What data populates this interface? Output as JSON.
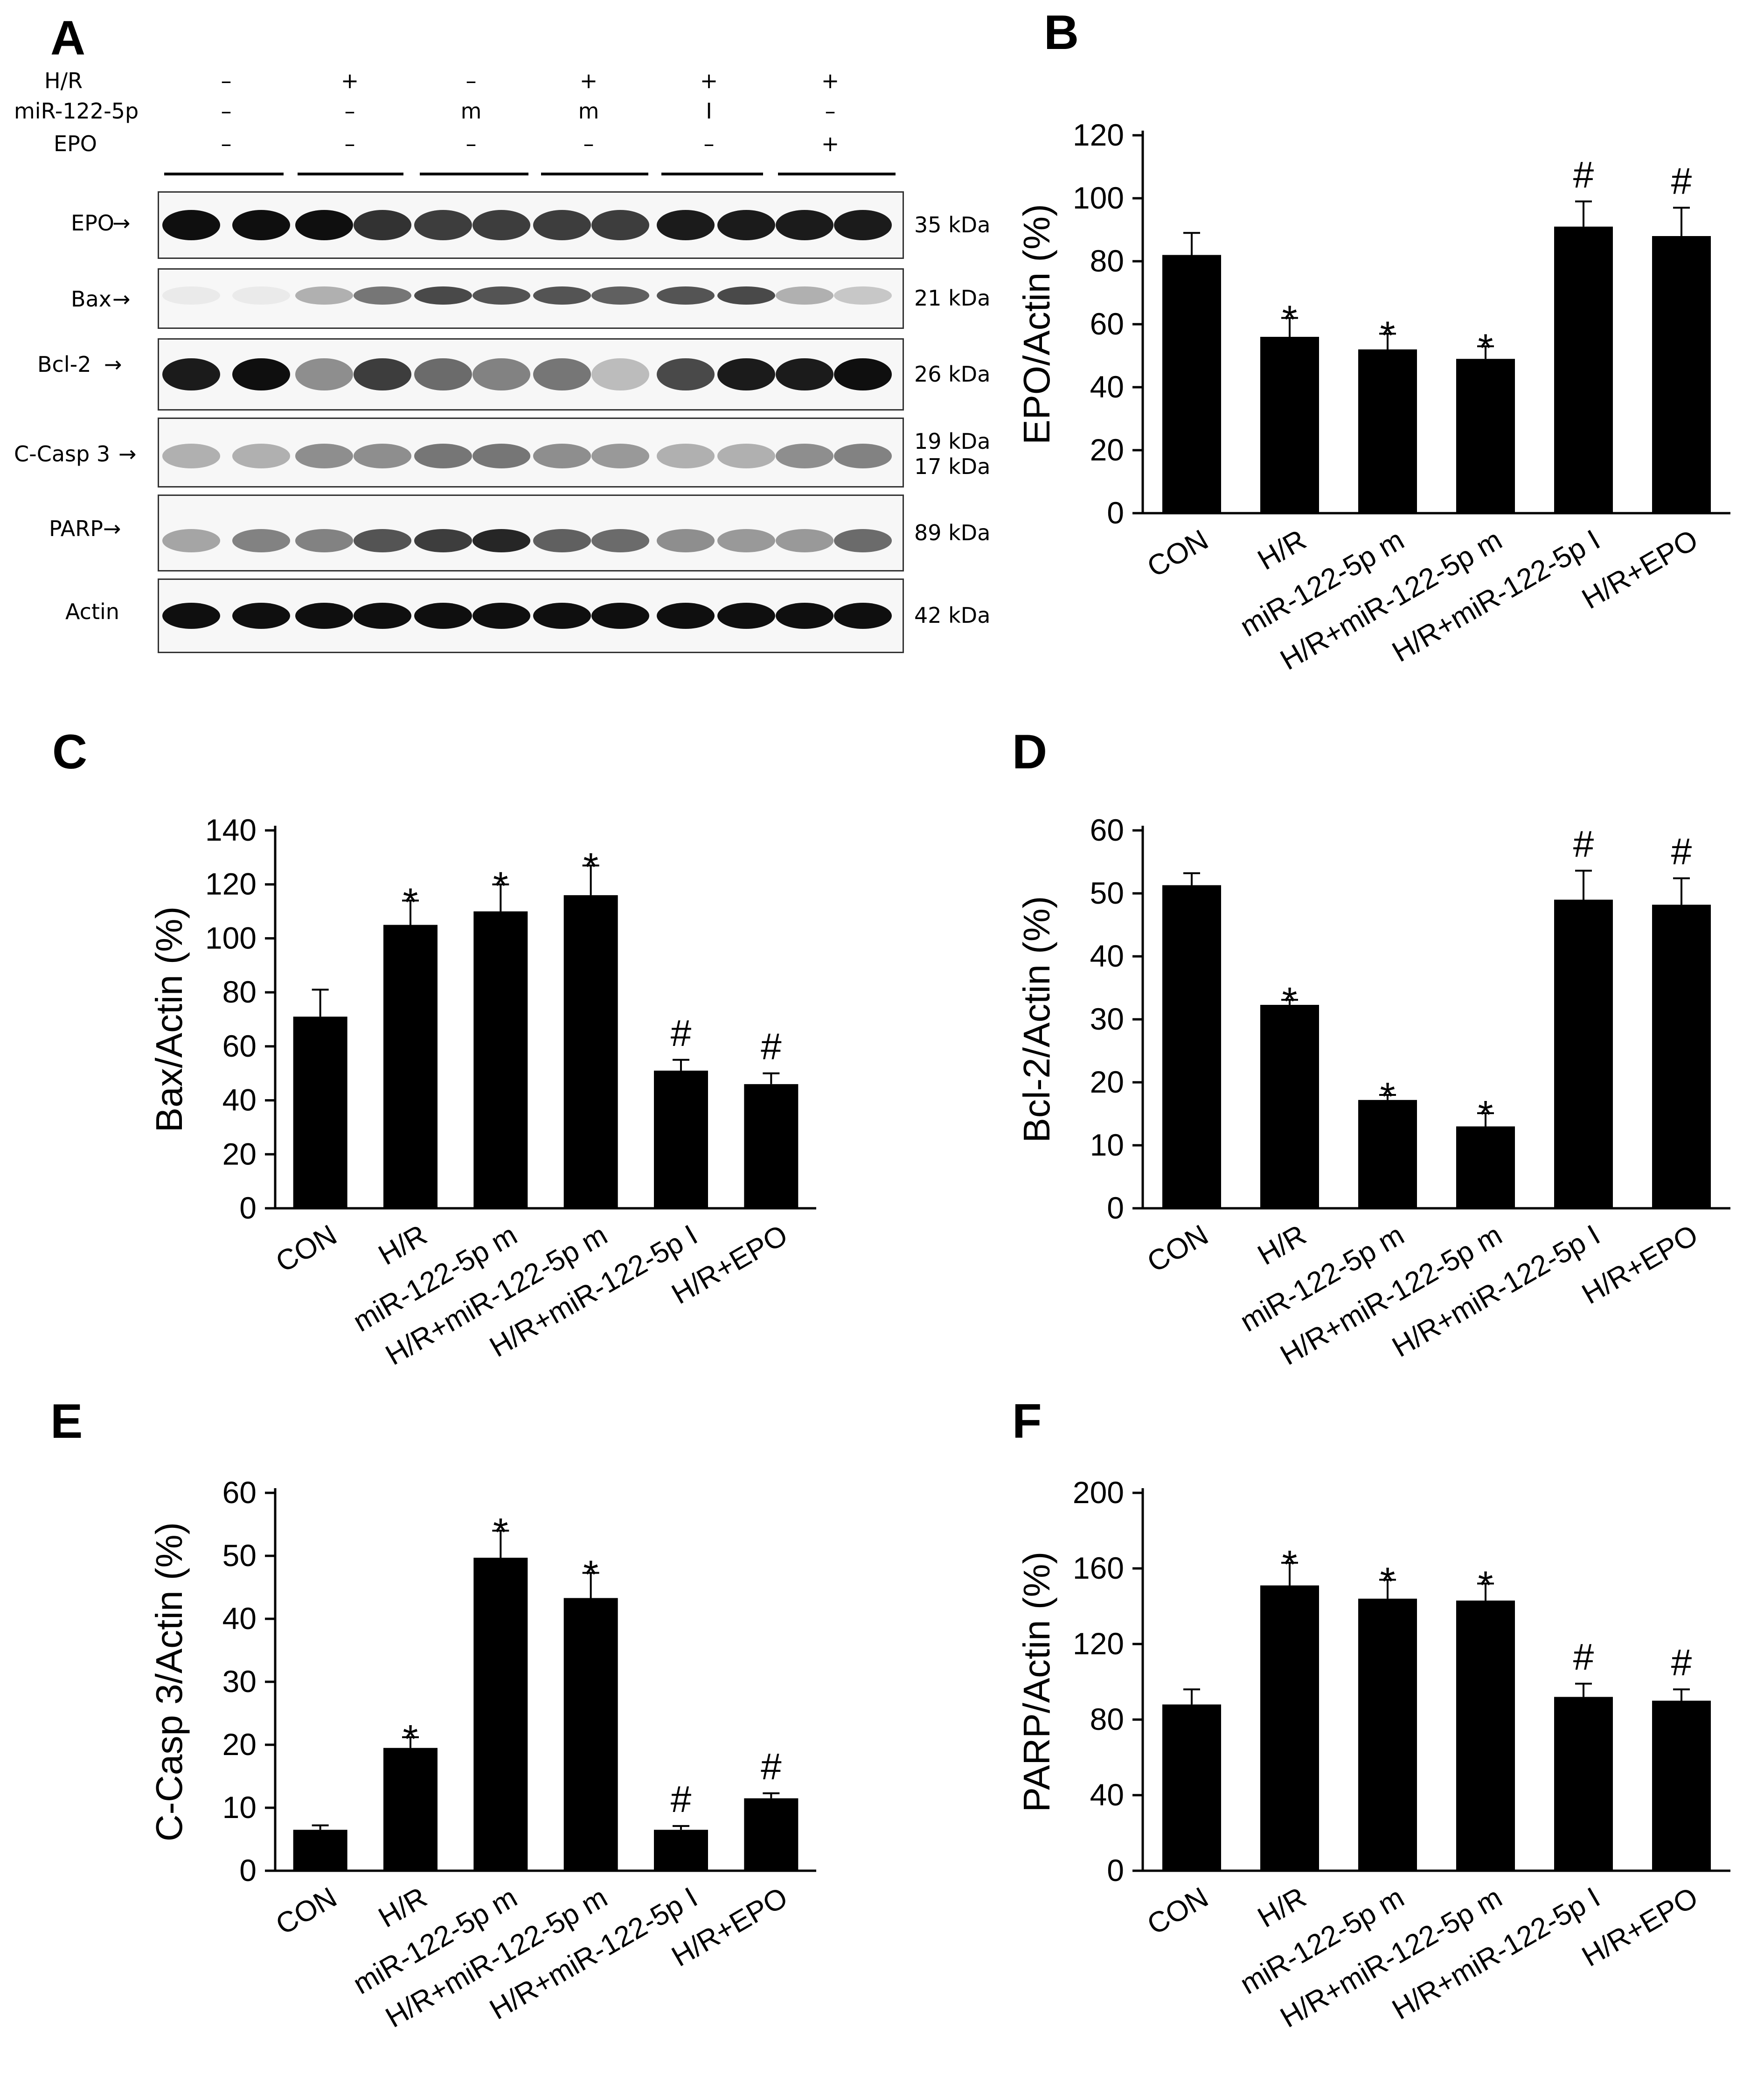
{
  "panels": {
    "A": "A",
    "B": "B",
    "C": "C",
    "D": "D",
    "E": "E",
    "F": "F"
  },
  "western_blot": {
    "conditions": [
      {
        "name": "H/R",
        "values": [
          "–",
          "+",
          "–",
          "+",
          "+",
          "+"
        ]
      },
      {
        "name": "miR-122-5p",
        "values": [
          "–",
          "–",
          "m",
          "m",
          "I",
          "–"
        ]
      },
      {
        "name": "EPO",
        "values": [
          "–",
          "–",
          "–",
          "–",
          "–",
          "+"
        ]
      }
    ],
    "rows": [
      {
        "label": "EPO",
        "kda": [
          "35 kDa"
        ]
      },
      {
        "label": "Bax",
        "kda": [
          "21 kDa"
        ]
      },
      {
        "label": "Bcl-2",
        "kda": [
          "26 kDa"
        ]
      },
      {
        "label": "C-Casp 3",
        "kda": [
          "19 kDa",
          "17 kDa"
        ]
      },
      {
        "label": "PARP",
        "kda": [
          "89 kDa"
        ]
      },
      {
        "label": "Actin",
        "kda": [
          "42 kDa"
        ]
      }
    ]
  },
  "chart_data": [
    {
      "panel": "B",
      "type": "bar",
      "categories": [
        "CON",
        "H/R",
        "miR-122-5p m",
        "H/R+miR-122-5p m",
        "H/R+miR-122-5p I",
        "H/R+EPO"
      ],
      "values": [
        82,
        56,
        52,
        49,
        91,
        88
      ],
      "errors": [
        7,
        6,
        5,
        4,
        8,
        9
      ],
      "marks": [
        "",
        "*",
        "*",
        "*",
        "#",
        "#"
      ],
      "ylabel": "EPO/Actin (%)",
      "ylim": [
        0,
        120
      ],
      "yticks": [
        "0",
        "20",
        "40",
        "60",
        "80",
        "100",
        "120"
      ]
    },
    {
      "panel": "C",
      "type": "bar",
      "categories": [
        "CON",
        "H/R",
        "miR-122-5p m",
        "H/R+miR-122-5p m",
        "H/R+miR-122-5p I",
        "H/R+EPO"
      ],
      "values": [
        71,
        105,
        110,
        116,
        51,
        46
      ],
      "errors": [
        10,
        9,
        10,
        11,
        4,
        4
      ],
      "marks": [
        "",
        "*",
        "*",
        "*",
        "#",
        "#"
      ],
      "ylabel": "Bax/Actin (%)",
      "ylim": [
        0,
        140
      ],
      "yticks": [
        "0",
        "20",
        "40",
        "60",
        "80",
        "100",
        "120",
        "140"
      ]
    },
    {
      "panel": "D",
      "type": "bar",
      "categories": [
        "CON",
        "H/R",
        "miR-122-5p m",
        "H/R+miR-122-5p m",
        "H/R+miR-122-5p I",
        "H/R+EPO"
      ],
      "values": [
        51.3,
        32.3,
        17.2,
        13,
        49,
        48.2
      ],
      "errors": [
        1.9,
        0.8,
        0.8,
        2.1,
        4.6,
        4.2
      ],
      "marks": [
        "",
        "*",
        "*",
        "*",
        "#",
        "#"
      ],
      "ylabel": "Bcl-2/Actin (%)",
      "ylim": [
        0,
        60
      ],
      "yticks": [
        "0",
        "10",
        "20",
        "30",
        "40",
        "50",
        "60"
      ]
    },
    {
      "panel": "E",
      "type": "bar",
      "categories": [
        "CON",
        "H/R",
        "miR-122-5p m",
        "H/R+miR-122-5p m",
        "H/R+miR-122-5p I",
        "H/R+EPO"
      ],
      "values": [
        6.5,
        19.5,
        49.7,
        43.3,
        6.5,
        11.5
      ],
      "errors": [
        0.7,
        1.7,
        4.3,
        4,
        0.6,
        0.8
      ],
      "marks": [
        "",
        "*",
        "*",
        "*",
        "#",
        "#"
      ],
      "ylabel": "C-Casp 3/Actin (%)",
      "ylim": [
        0,
        60
      ],
      "yticks": [
        "0",
        "10",
        "20",
        "30",
        "40",
        "50",
        "60"
      ]
    },
    {
      "panel": "F",
      "type": "bar",
      "categories": [
        "CON",
        "H/R",
        "miR-122-5p m",
        "H/R+miR-122-5p m",
        "H/R+miR-122-5p I",
        "H/R+EPO"
      ],
      "values": [
        88,
        151,
        144,
        143,
        92,
        90
      ],
      "errors": [
        8,
        12,
        10,
        9,
        7,
        6
      ],
      "marks": [
        "",
        "*",
        "*",
        "*",
        "#",
        "#"
      ],
      "ylabel": "PARP/Actin (%)",
      "ylim": [
        0,
        200
      ],
      "yticks": [
        "0",
        "40",
        "80",
        "120",
        "160",
        "200"
      ]
    }
  ]
}
